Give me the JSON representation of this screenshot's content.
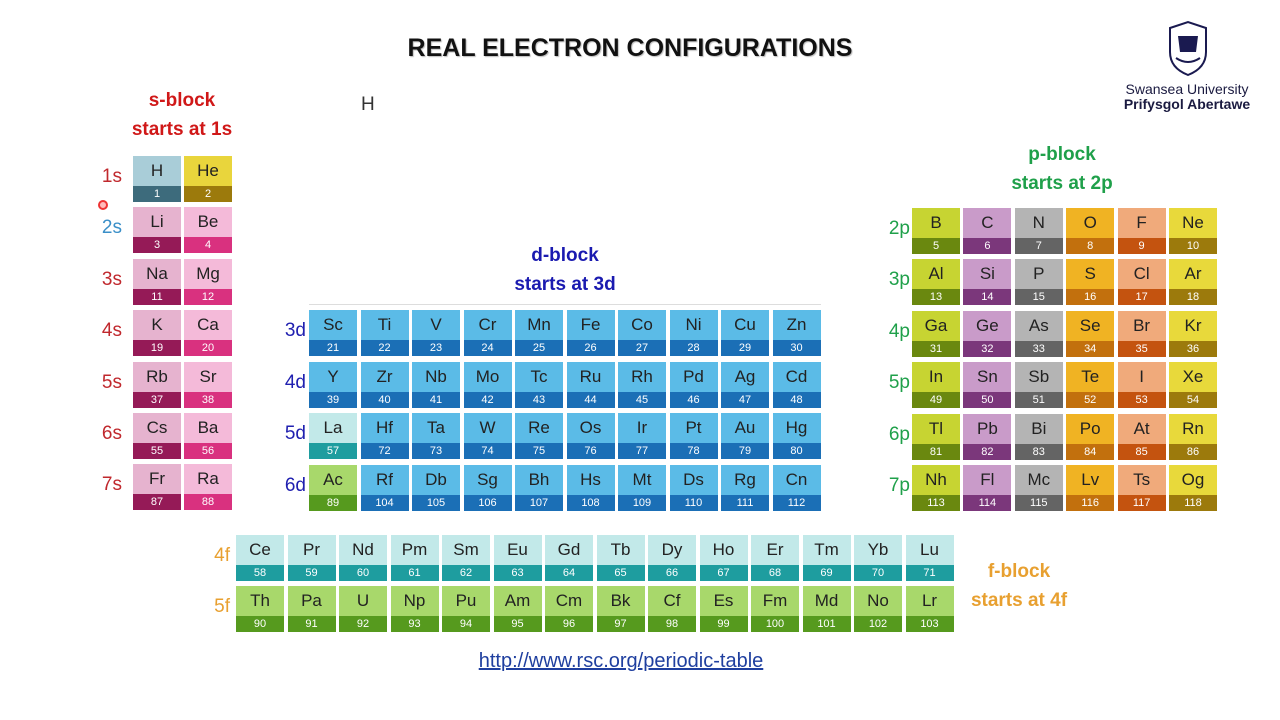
{
  "title": "REAL ELECTRON CONFIGURATIONS",
  "stray_text": "H",
  "logo": {
    "line1": "Swansea University",
    "line2": "Prifysgol Abertawe"
  },
  "s_block": {
    "label": "s-block",
    "subtitle": "starts at 1s",
    "rows": [
      {
        "shell": "1s",
        "elements": [
          [
            "H",
            "1"
          ],
          [
            "He",
            "2"
          ]
        ]
      },
      {
        "shell": "2s",
        "elements": [
          [
            "Li",
            "3"
          ],
          [
            "Be",
            "4"
          ]
        ]
      },
      {
        "shell": "3s",
        "elements": [
          [
            "Na",
            "11"
          ],
          [
            "Mg",
            "12"
          ]
        ]
      },
      {
        "shell": "4s",
        "elements": [
          [
            "K",
            "19"
          ],
          [
            "Ca",
            "20"
          ]
        ]
      },
      {
        "shell": "5s",
        "elements": [
          [
            "Rb",
            "37"
          ],
          [
            "Sr",
            "38"
          ]
        ]
      },
      {
        "shell": "6s",
        "elements": [
          [
            "Cs",
            "55"
          ],
          [
            "Ba",
            "56"
          ]
        ]
      },
      {
        "shell": "7s",
        "elements": [
          [
            "Fr",
            "87"
          ],
          [
            "Ra",
            "88"
          ]
        ]
      }
    ]
  },
  "d_block": {
    "label": "d-block",
    "subtitle": "starts at 3d",
    "rows": [
      {
        "shell": "3d",
        "elements": [
          [
            "Sc",
            "21"
          ],
          [
            "Ti",
            "22"
          ],
          [
            "V",
            "23"
          ],
          [
            "Cr",
            "24"
          ],
          [
            "Mn",
            "25"
          ],
          [
            "Fe",
            "26"
          ],
          [
            "Co",
            "27"
          ],
          [
            "Ni",
            "28"
          ],
          [
            "Cu",
            "29"
          ],
          [
            "Zn",
            "30"
          ]
        ]
      },
      {
        "shell": "4d",
        "elements": [
          [
            "Y",
            "39"
          ],
          [
            "Zr",
            "40"
          ],
          [
            "Nb",
            "41"
          ],
          [
            "Mo",
            "42"
          ],
          [
            "Tc",
            "43"
          ],
          [
            "Ru",
            "44"
          ],
          [
            "Rh",
            "45"
          ],
          [
            "Pd",
            "46"
          ],
          [
            "Ag",
            "47"
          ],
          [
            "Cd",
            "48"
          ]
        ]
      },
      {
        "shell": "5d",
        "elements": [
          [
            "La",
            "57"
          ],
          [
            "Hf",
            "72"
          ],
          [
            "Ta",
            "73"
          ],
          [
            "W",
            "74"
          ],
          [
            "Re",
            "75"
          ],
          [
            "Os",
            "76"
          ],
          [
            "Ir",
            "77"
          ],
          [
            "Pt",
            "78"
          ],
          [
            "Au",
            "79"
          ],
          [
            "Hg",
            "80"
          ]
        ]
      },
      {
        "shell": "6d",
        "elements": [
          [
            "Ac",
            "89"
          ],
          [
            "Rf",
            "104"
          ],
          [
            "Db",
            "105"
          ],
          [
            "Sg",
            "106"
          ],
          [
            "Bh",
            "107"
          ],
          [
            "Hs",
            "108"
          ],
          [
            "Mt",
            "109"
          ],
          [
            "Ds",
            "110"
          ],
          [
            "Rg",
            "111"
          ],
          [
            "Cn",
            "112"
          ]
        ]
      }
    ]
  },
  "p_block": {
    "label": "p-block",
    "subtitle": "starts at 2p",
    "rows": [
      {
        "shell": "2p",
        "elements": [
          [
            "B",
            "5"
          ],
          [
            "C",
            "6"
          ],
          [
            "N",
            "7"
          ],
          [
            "O",
            "8"
          ],
          [
            "F",
            "9"
          ],
          [
            "Ne",
            "10"
          ]
        ]
      },
      {
        "shell": "3p",
        "elements": [
          [
            "Al",
            "13"
          ],
          [
            "Si",
            "14"
          ],
          [
            "P",
            "15"
          ],
          [
            "S",
            "16"
          ],
          [
            "Cl",
            "17"
          ],
          [
            "Ar",
            "18"
          ]
        ]
      },
      {
        "shell": "4p",
        "elements": [
          [
            "Ga",
            "31"
          ],
          [
            "Ge",
            "32"
          ],
          [
            "As",
            "33"
          ],
          [
            "Se",
            "34"
          ],
          [
            "Br",
            "35"
          ],
          [
            "Kr",
            "36"
          ]
        ]
      },
      {
        "shell": "5p",
        "elements": [
          [
            "In",
            "49"
          ],
          [
            "Sn",
            "50"
          ],
          [
            "Sb",
            "51"
          ],
          [
            "Te",
            "52"
          ],
          [
            "I",
            "53"
          ],
          [
            "Xe",
            "54"
          ]
        ]
      },
      {
        "shell": "6p",
        "elements": [
          [
            "Tl",
            "81"
          ],
          [
            "Pb",
            "82"
          ],
          [
            "Bi",
            "83"
          ],
          [
            "Po",
            "84"
          ],
          [
            "At",
            "85"
          ],
          [
            "Rn",
            "86"
          ]
        ]
      },
      {
        "shell": "7p",
        "elements": [
          [
            "Nh",
            "113"
          ],
          [
            "Fl",
            "114"
          ],
          [
            "Mc",
            "115"
          ],
          [
            "Lv",
            "116"
          ],
          [
            "Ts",
            "117"
          ],
          [
            "Og",
            "118"
          ]
        ]
      }
    ]
  },
  "f_block": {
    "label": "f-block",
    "subtitle": "starts at 4f",
    "rows": [
      {
        "shell": "4f",
        "elements": [
          [
            "Ce",
            "58"
          ],
          [
            "Pr",
            "59"
          ],
          [
            "Nd",
            "60"
          ],
          [
            "Pm",
            "61"
          ],
          [
            "Sm",
            "62"
          ],
          [
            "Eu",
            "63"
          ],
          [
            "Gd",
            "64"
          ],
          [
            "Tb",
            "65"
          ],
          [
            "Dy",
            "66"
          ],
          [
            "Ho",
            "67"
          ],
          [
            "Er",
            "68"
          ],
          [
            "Tm",
            "69"
          ],
          [
            "Yb",
            "70"
          ],
          [
            "Lu",
            "71"
          ]
        ]
      },
      {
        "shell": "5f",
        "elements": [
          [
            "Th",
            "90"
          ],
          [
            "Pa",
            "91"
          ],
          [
            "U",
            "92"
          ],
          [
            "Np",
            "93"
          ],
          [
            "Pu",
            "94"
          ],
          [
            "Am",
            "95"
          ],
          [
            "Cm",
            "96"
          ],
          [
            "Bk",
            "97"
          ],
          [
            "Cf",
            "98"
          ],
          [
            "Es",
            "99"
          ],
          [
            "Fm",
            "100"
          ],
          [
            "Md",
            "101"
          ],
          [
            "No",
            "102"
          ],
          [
            "Lr",
            "103"
          ]
        ]
      }
    ]
  },
  "link": "http://www.rsc.org/periodic-table"
}
